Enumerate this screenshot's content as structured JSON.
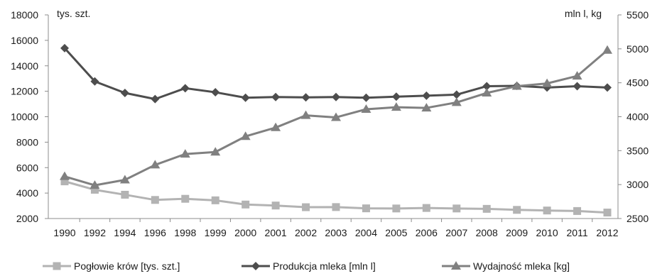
{
  "chart_data": {
    "type": "line",
    "title": "",
    "x": [
      "1990",
      "1992",
      "1994",
      "1996",
      "1998",
      "1999",
      "2000",
      "2001",
      "2002",
      "2003",
      "2004",
      "2005",
      "2006",
      "2007",
      "2008",
      "2009",
      "2010",
      "2011",
      "2012"
    ],
    "left_axis": {
      "label": "tys. szt.",
      "range": [
        2000,
        18000
      ],
      "ticks": [
        "2000",
        "4000",
        "6000",
        "8000",
        "10000",
        "12000",
        "14000",
        "16000",
        "18000"
      ]
    },
    "right_axis": {
      "label": "mln l, kg",
      "range": [
        2500,
        5500
      ],
      "ticks": [
        "2500",
        "3000",
        "3500",
        "4000",
        "4500",
        "5000",
        "5500"
      ]
    },
    "grid": false,
    "legend_position": "bottom",
    "series": [
      {
        "name": "Pogłowie krów [tys. szt.]",
        "axis": "left",
        "marker": "square",
        "color": "#b3b3b3",
        "values": [
          4920,
          4260,
          3870,
          3460,
          3550,
          3430,
          3100,
          3020,
          2890,
          2900,
          2800,
          2790,
          2830,
          2790,
          2760,
          2680,
          2630,
          2590,
          2470
        ]
      },
      {
        "name": "Produkcja mleka [mln l]",
        "axis": "right",
        "marker": "diamond",
        "color": "#4d4d4d",
        "values": [
          5010,
          4520,
          4350,
          4260,
          4420,
          4360,
          4280,
          4290,
          4285,
          4290,
          4280,
          4295,
          4310,
          4325,
          4450,
          4455,
          4430,
          4450,
          4430
        ]
      },
      {
        "name": "Wydajność mleka [kg]",
        "axis": "right",
        "marker": "triangle",
        "color": "#808080",
        "values": [
          3120,
          2990,
          3070,
          3290,
          3450,
          3480,
          3710,
          3840,
          4020,
          3990,
          4110,
          4140,
          4130,
          4210,
          4350,
          4450,
          4490,
          4600,
          4980
        ]
      }
    ]
  }
}
